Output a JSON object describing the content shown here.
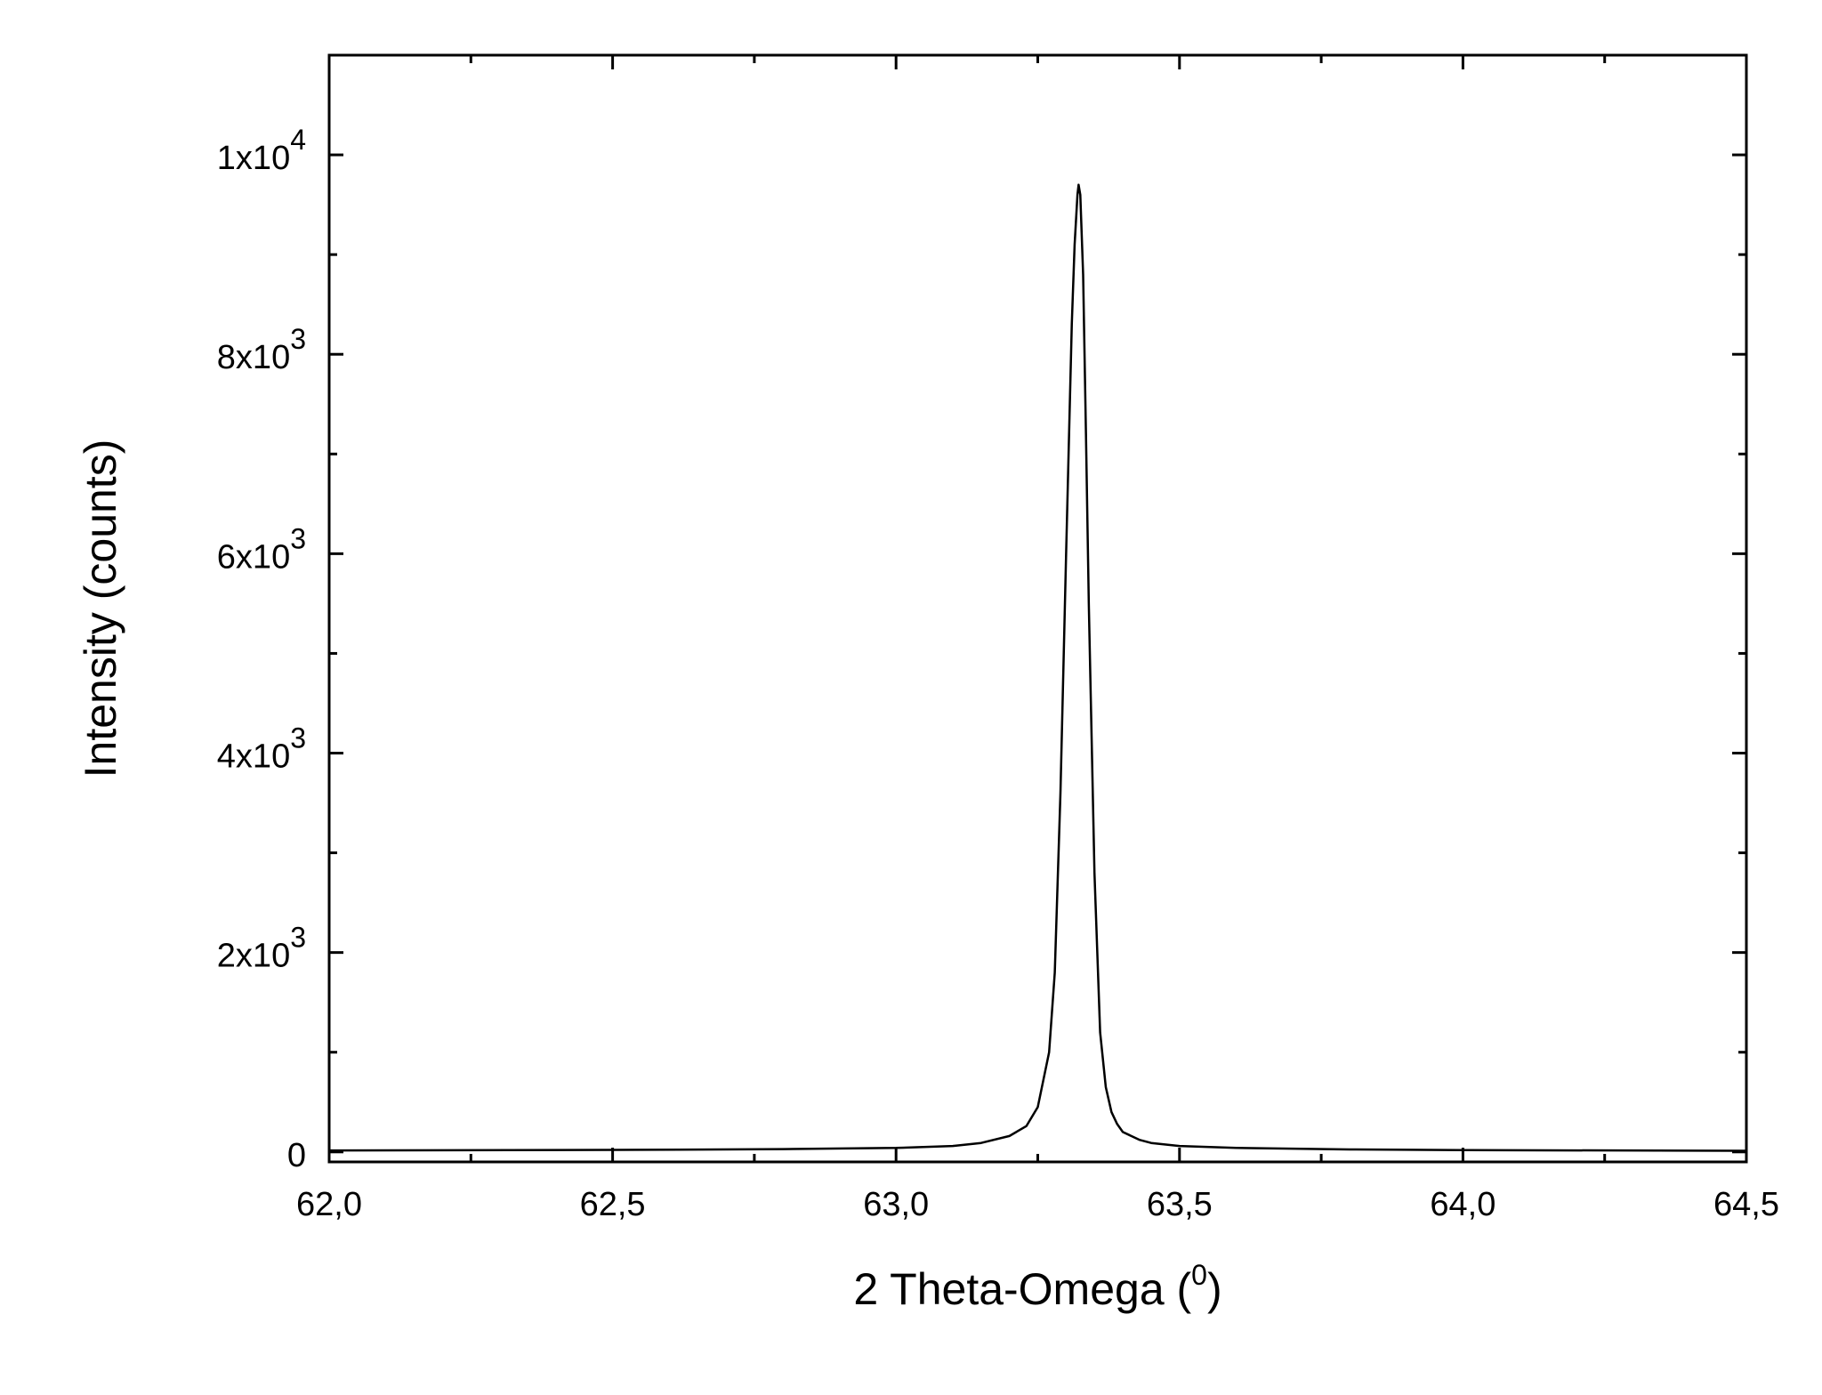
{
  "chart_data": {
    "type": "line",
    "xlabel": "2 Theta-Omega (",
    "xlabel_superscript": "0",
    "xlabel_suffix": ")",
    "ylabel": "Intensity (counts)",
    "xlim": [
      62.0,
      64.5
    ],
    "ylim": [
      -100,
      11000
    ],
    "x_ticks": [
      62.0,
      62.5,
      63.0,
      63.5,
      64.0,
      64.5
    ],
    "x_tick_labels": [
      "62,0",
      "62,5",
      "63,0",
      "63,5",
      "64,0",
      "64,5"
    ],
    "y_ticks": [
      {
        "value": 0,
        "mantissa": "0",
        "exponent": ""
      },
      {
        "value": 2000,
        "mantissa": "2x10",
        "exponent": "3"
      },
      {
        "value": 4000,
        "mantissa": "4x10",
        "exponent": "3"
      },
      {
        "value": 6000,
        "mantissa": "6x10",
        "exponent": "3"
      },
      {
        "value": 8000,
        "mantissa": "8x10",
        "exponent": "3"
      },
      {
        "value": 10000,
        "mantissa": "1x10",
        "exponent": "4"
      }
    ],
    "grid": false,
    "legend": false,
    "series": [
      {
        "color": "#000000",
        "x": [
          62.0,
          62.5,
          62.8,
          63.0,
          63.1,
          63.15,
          63.2,
          63.23,
          63.25,
          63.27,
          63.28,
          63.29,
          63.3,
          63.31,
          63.315,
          63.32,
          63.322,
          63.325,
          63.33,
          63.335,
          63.34,
          63.35,
          63.36,
          63.37,
          63.38,
          63.39,
          63.4,
          63.43,
          63.45,
          63.5,
          63.6,
          63.8,
          64.0,
          64.5
        ],
        "y": [
          15,
          20,
          28,
          40,
          60,
          90,
          160,
          260,
          450,
          1000,
          1800,
          3600,
          6000,
          8300,
          9100,
          9600,
          9700,
          9600,
          8800,
          7200,
          5500,
          2800,
          1200,
          650,
          400,
          280,
          200,
          120,
          90,
          60,
          40,
          25,
          18,
          12
        ]
      }
    ]
  }
}
